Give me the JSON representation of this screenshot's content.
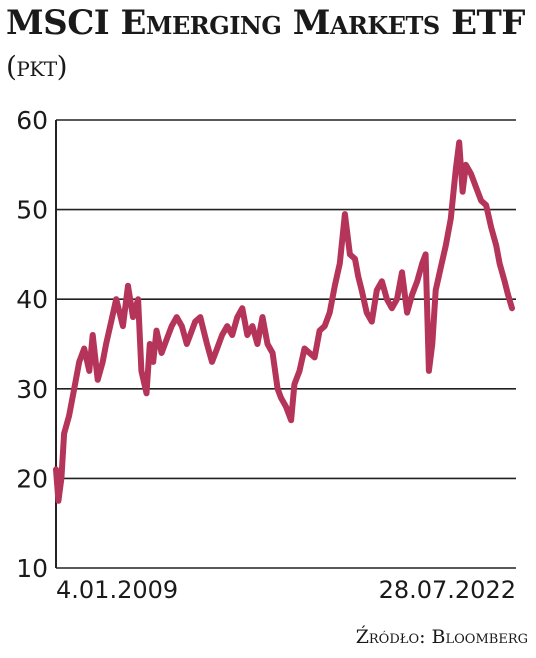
{
  "header": {
    "title": "MSCI Emerging Markets ETF",
    "unit": "(pkt)"
  },
  "source": "Źródło: Bloomberg",
  "colors": {
    "line": "#b5345a",
    "grid": "#222222",
    "text": "#1a1a1a"
  },
  "chart_data": {
    "type": "line",
    "title": "MSCI Emerging Markets ETF",
    "ylim": [
      10,
      60
    ],
    "yticks": [
      10,
      20,
      30,
      40,
      50,
      60
    ],
    "x_labels": {
      "start": "4.01.2009",
      "end": "28.07.2022"
    },
    "grid": "horizontal",
    "series": [
      {
        "x": [
          2009.01,
          2009.08,
          2009.17,
          2009.25,
          2009.4,
          2009.55,
          2009.7,
          2009.85,
          2010.0,
          2010.1,
          2010.25,
          2010.4,
          2010.5,
          2010.65,
          2010.8,
          2010.9,
          2011.0,
          2011.15,
          2011.3,
          2011.45,
          2011.55,
          2011.7,
          2011.8,
          2011.9,
          2012.0,
          2012.15,
          2012.3,
          2012.45,
          2012.6,
          2012.75,
          2012.9,
          2013.0,
          2013.15,
          2013.3,
          2013.4,
          2013.5,
          2013.65,
          2013.8,
          2013.95,
          2014.1,
          2014.25,
          2014.4,
          2014.55,
          2014.7,
          2014.85,
          2015.0,
          2015.15,
          2015.3,
          2015.45,
          2015.6,
          2015.7,
          2015.85,
          2016.0,
          2016.1,
          2016.25,
          2016.4,
          2016.55,
          2016.7,
          2016.85,
          2017.0,
          2017.15,
          2017.3,
          2017.45,
          2017.6,
          2017.75,
          2017.9,
          2018.0,
          2018.1,
          2018.25,
          2018.4,
          2018.55,
          2018.7,
          2018.85,
          2019.0,
          2019.15,
          2019.3,
          2019.45,
          2019.6,
          2019.75,
          2019.9,
          2020.0,
          2020.1,
          2020.2,
          2020.3,
          2020.45,
          2020.6,
          2020.75,
          2020.9,
          2021.0,
          2021.1,
          2021.2,
          2021.35,
          2021.5,
          2021.65,
          2021.8,
          2021.95,
          2022.1,
          2022.2,
          2022.35,
          2022.45,
          2022.57
        ],
        "y": [
          21,
          17.5,
          20,
          25,
          27,
          30,
          33,
          34.5,
          32,
          36,
          31,
          33,
          35,
          37.5,
          40,
          38.5,
          37,
          41.5,
          38,
          40,
          32,
          29.5,
          35,
          33,
          36.5,
          34,
          35.5,
          37,
          38,
          37,
          35,
          36,
          37.5,
          38,
          36.5,
          35,
          33,
          34.5,
          36,
          37,
          36,
          38,
          39,
          36,
          37,
          35,
          38,
          35,
          34,
          30,
          29,
          28,
          26.5,
          30.5,
          32,
          34.5,
          34,
          33.5,
          36.5,
          37,
          38.5,
          41.5,
          44,
          49.5,
          45,
          44.5,
          42.5,
          41,
          38.5,
          37.5,
          41,
          42,
          40,
          39,
          40,
          43,
          38.5,
          40.5,
          42,
          44,
          45,
          32,
          35,
          41,
          43.5,
          46,
          49,
          54.5,
          57.5,
          52,
          55,
          54,
          52.5,
          51,
          50.5,
          48,
          46,
          44,
          42,
          40.5,
          39
        ]
      }
    ]
  }
}
